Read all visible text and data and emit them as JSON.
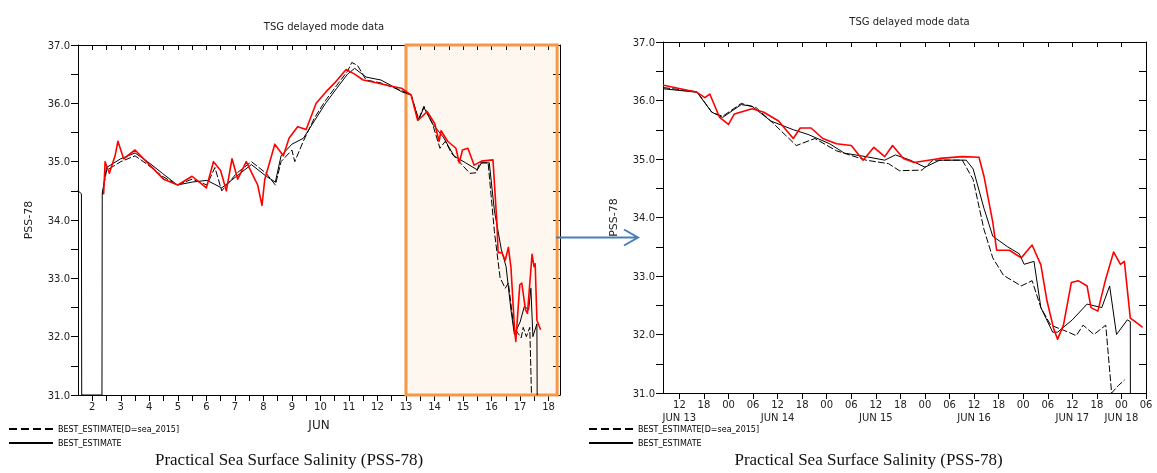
{
  "chart_data": [
    {
      "type": "line",
      "title": "TSG delayed mode data",
      "subtitle": "Practical Sea Surface Salinity (PSS-78)",
      "xlabel": "JUN",
      "ylabel": "PSS-78",
      "xlim": [
        "--06-02T00:00",
        "--06-18T21:36"
      ],
      "xticks": [
        {
          "value": "--06-02T12:00",
          "label": "2"
        },
        {
          "value": "--06-03T12:00",
          "label": "3"
        },
        {
          "value": "--06-04T12:00",
          "label": "4"
        },
        {
          "value": "--06-05T12:00",
          "label": "5"
        },
        {
          "value": "--06-06T12:00",
          "label": "6"
        },
        {
          "value": "--06-07T12:00",
          "label": "7"
        },
        {
          "value": "--06-08T12:00",
          "label": "8"
        },
        {
          "value": "--06-09T12:00",
          "label": "9"
        },
        {
          "value": "--06-10T12:00",
          "label": "10"
        },
        {
          "value": "--06-11T12:00",
          "label": "11"
        },
        {
          "value": "--06-12T12:00",
          "label": "12"
        },
        {
          "value": "--06-13T12:00",
          "label": "13"
        },
        {
          "value": "--06-14T12:00",
          "label": "14"
        },
        {
          "value": "--06-15T12:00",
          "label": "15"
        },
        {
          "value": "--06-16T12:00",
          "label": "16"
        },
        {
          "value": "--06-17T12:00",
          "label": "17"
        },
        {
          "value": "--06-18T12:00",
          "label": "18"
        },
        {
          "value": "--06-03T00:00",
          "label": null
        },
        {
          "value": "--06-04T00:00",
          "label": null
        },
        {
          "value": "--06-05T00:00",
          "label": null
        },
        {
          "value": "--06-06T00:00",
          "label": null
        },
        {
          "value": "--06-07T00:00",
          "label": null
        },
        {
          "value": "--06-08T00:00",
          "label": null
        },
        {
          "value": "--06-09T00:00",
          "label": null
        },
        {
          "value": "--06-10T00:00",
          "label": null
        },
        {
          "value": "--06-11T00:00",
          "label": null
        },
        {
          "value": "--06-12T00:00",
          "label": null
        },
        {
          "value": "--06-13T00:00",
          "label": null
        },
        {
          "value": "--06-14T00:00",
          "label": null
        },
        {
          "value": "--06-15T00:00",
          "label": null
        },
        {
          "value": "--06-16T00:00",
          "label": null
        },
        {
          "value": "--06-17T00:00",
          "label": null
        },
        {
          "value": "--06-18T00:00",
          "label": null
        }
      ],
      "ylim": [
        31,
        37
      ],
      "yticks": [
        {
          "value": 31,
          "label": "31.0"
        },
        {
          "value": 32,
          "label": "32.0"
        },
        {
          "value": 33,
          "label": "33.0"
        },
        {
          "value": 34,
          "label": "34.0"
        },
        {
          "value": 35,
          "label": "35.0"
        },
        {
          "value": 36,
          "label": "36.0"
        },
        {
          "value": 37,
          "label": "37.0"
        },
        {
          "value": 31.5,
          "label": null
        },
        {
          "value": 32.5,
          "label": null
        },
        {
          "value": 33.5,
          "label": null
        },
        {
          "value": 34.5,
          "label": null
        },
        {
          "value": 35.5,
          "label": null
        },
        {
          "value": 36.5,
          "label": null
        }
      ],
      "grid": false,
      "legend": "bottom left",
      "marker": "none",
      "bands": [
        {
          "axis": "x",
          "from": "--06-13T12:00",
          "to": "--06-18T19:12",
          "color": "#f79646"
        }
      ],
      "series": [
        {
          "name": "BEST_ESTIMATE[D=sea_2015]",
          "color": "#000000",
          "line_style": "dashed",
          "x": [
            "--06-02T20:38",
            "--06-03T00:00",
            "--06-03T12:00",
            "--06-04T00:00",
            "--06-04T10:34",
            "--06-04T23:02",
            "--06-05T11:31",
            "--06-06T00:00",
            "--06-06T12:29",
            "--06-06T19:12",
            "--06-07T00:58",
            "--06-07T13:26",
            "--06-08T01:55",
            "--06-08T14:24",
            "--06-08T22:05",
            "--06-09T02:53",
            "--06-09T12:00",
            "--06-09T14:24",
            "--06-09T21:36",
            "--06-10T06:58",
            "--06-10T16:19",
            "--06-11T01:26",
            "--06-11T10:48",
            "--06-11T14:24",
            "--06-11T19:12",
            "--06-12T02:24",
            "--06-12T14:53",
            "--06-13T00:00",
            "--06-13T08:10",
            "--06-13T16:19",
            "--06-13T22:34",
            "--06-14T03:07",
            "--06-14T10:19",
            "--06-14T16:34",
            "--06-14T21:07",
            "--06-15T02:24",
            "--06-15T09:36",
            "--06-15T17:46",
            "--06-15T23:17",
            "--06-16T01:55",
            "--06-16T09:07",
            "--06-16T14:24",
            "--06-16T19:12",
            "--06-16T23:31",
            "--06-17T02:10",
            "--06-17T06:43",
            "--06-17T12:58",
            "--06-17T14:38",
            "--06-17T17:17",
            "--06-17T20:10",
            "--06-17T21:36"
          ],
          "values": [
            34.45,
            34.85,
            35.0,
            35.1,
            34.95,
            34.75,
            34.6,
            34.7,
            34.6,
            34.9,
            34.5,
            34.8,
            35.0,
            34.8,
            34.6,
            35.0,
            35.2,
            35.0,
            35.35,
            35.75,
            36.05,
            36.3,
            36.55,
            36.7,
            36.65,
            36.4,
            36.35,
            36.28,
            36.22,
            36.15,
            35.73,
            35.95,
            35.65,
            35.23,
            35.35,
            35.14,
            34.98,
            34.8,
            34.81,
            34.98,
            34.98,
            33.8,
            33.01,
            32.83,
            32.92,
            32.16,
            31.98,
            32.16,
            32.0,
            32.16,
            31.0
          ]
        },
        {
          "name": "BEST_ESTIMATE",
          "color": "#000000",
          "line_style": "solid",
          "x": [
            "--06-02T00:00",
            "--06-02T02:53",
            "--06-02T03:07",
            "--06-02T20:10",
            "--06-02T20:24",
            "--06-03T00:00",
            "--06-03T12:00",
            "--06-04T00:00",
            "--06-04T10:34",
            "--06-04T23:02",
            "--06-05T11:31",
            "--06-06T00:00",
            "--06-06T12:29",
            "--06-07T00:58",
            "--06-07T13:26",
            "--06-08T01:55",
            "--06-08T14:24",
            "--06-08T22:05",
            "--06-09T02:53",
            "--06-09T12:00",
            "--06-09T21:36",
            "--06-10T06:58",
            "--06-10T16:19",
            "--06-11T01:26",
            "--06-11T10:48",
            "--06-11T16:48",
            "--06-12T02:24",
            "--06-12T14:53",
            "--06-13T00:00",
            "--06-13T08:10",
            "--06-13T16:19",
            "--06-13T22:34",
            "--06-14T03:07",
            "--06-14T10:19",
            "--06-14T19:26",
            "--06-15T04:19",
            "--06-15T14:10",
            "--06-16T00:00",
            "--06-16T03:36",
            "--06-16T10:05",
            "--06-16T14:24",
            "--06-16T20:10",
            "--06-17T00:14",
            "--06-17T04:19",
            "--06-17T07:12",
            "--06-17T12:00",
            "--06-17T15:36",
            "--06-17T19:12",
            "--06-17T21:07",
            "--06-17T22:48",
            "--06-18T02:10",
            "--06-18T02:24"
          ],
          "values": [
            34.5,
            34.45,
            31.0,
            31.0,
            34.45,
            34.9,
            35.05,
            35.15,
            35.0,
            34.8,
            34.6,
            34.65,
            34.68,
            34.55,
            34.75,
            34.95,
            34.75,
            34.65,
            35.1,
            35.3,
            35.4,
            35.7,
            36.0,
            36.25,
            36.5,
            36.6,
            36.45,
            36.4,
            36.3,
            36.2,
            36.14,
            35.71,
            35.93,
            35.65,
            35.42,
            35.1,
            34.98,
            34.86,
            34.98,
            34.98,
            34.16,
            33.5,
            33.2,
            32.46,
            32.04,
            32.25,
            32.52,
            32.46,
            32.83,
            32.0,
            32.22,
            31.0
          ]
        },
        {
          "color": "#ff0000",
          "line_style": "solid",
          "x": [
            "--06-02T21:36",
            "--06-02T22:48",
            "--06-03T02:24",
            "--06-03T07:12",
            "--06-03T09:36",
            "--06-03T14:24",
            "--06-04T00:00",
            "--06-04T12:00",
            "--06-05T00:00",
            "--06-05T12:00",
            "--06-06T00:00",
            "--06-06T12:00",
            "--06-06T18:00",
            "--06-07T00:00",
            "--06-07T04:48",
            "--06-07T09:36",
            "--06-07T14:24",
            "--06-07T21:36",
            "--06-08T07:12",
            "--06-08T10:48",
            "--06-08T13:12",
            "--06-08T21:36",
            "--06-09T04:48",
            "--06-09T09:36",
            "--06-09T16:48",
            "--06-10T00:00",
            "--06-10T08:24",
            "--06-10T16:48",
            "--06-11T00:00",
            "--06-11T09:36",
            "--06-11T16:48",
            "--06-12T00:00",
            "--06-12T12:00",
            "--06-12T21:36",
            "--06-13T08:10",
            "--06-13T16:19",
            "--06-13T21:50",
            "--06-14T01:26",
            "--06-14T05:46",
            "--06-14T12:14",
            "--06-14T15:50",
            "--06-14T17:31",
            "--06-14T23:02",
            "--06-15T06:00",
            "--06-15T08:53",
            "--06-15T11:31",
            "--06-15T16:05",
            "--06-15T21:22",
            "--06-16T03:36",
            "--06-16T13:12",
            "--06-16T16:34",
            "--06-16T17:31",
            "--06-16T20:38",
            "--06-16T23:31",
            "--06-17T02:10",
            "--06-17T04:19",
            "--06-17T07:26",
            "--06-17T08:24",
            "--06-17T11:46",
            "--06-17T13:26",
            "--06-17T16:34",
            "--06-17T18:14",
            "--06-17T22:05",
            "--06-17T23:46",
            "--06-18T00:43",
            "--06-18T02:10",
            "--06-18T05:02"
          ],
          "values": [
            34.45,
            35.0,
            34.8,
            35.1,
            35.35,
            35.05,
            35.2,
            34.95,
            34.7,
            34.6,
            34.75,
            34.55,
            35.0,
            34.85,
            34.5,
            35.05,
            34.7,
            35.0,
            34.6,
            34.25,
            34.7,
            35.3,
            35.1,
            35.4,
            35.6,
            35.55,
            36.0,
            36.2,
            36.35,
            36.58,
            36.5,
            36.4,
            36.35,
            36.3,
            36.26,
            36.14,
            35.71,
            35.77,
            35.86,
            35.65,
            35.35,
            35.53,
            35.35,
            35.23,
            34.98,
            35.2,
            35.23,
            34.94,
            35.01,
            35.03,
            33.92,
            33.44,
            33.44,
            33.31,
            33.53,
            33.19,
            32.1,
            31.92,
            32.89,
            32.92,
            32.46,
            32.4,
            33.41,
            33.2,
            33.25,
            32.28,
            32.13
          ]
        }
      ]
    },
    {
      "type": "line",
      "title": "TSG delayed mode data",
      "subtitle": "Practical Sea Surface Salinity (PSS-78)",
      "ylabel": "PSS-78",
      "xlim": [
        "--06-13T08:00",
        "--06-18T06:00"
      ],
      "xticks": [
        {
          "value": "--06-13T12:00",
          "label": "12\nJUN 13"
        },
        {
          "value": "--06-13T18:00",
          "label": "18"
        },
        {
          "value": "--06-14T00:00",
          "label": "00"
        },
        {
          "value": "--06-14T06:00",
          "label": "06"
        },
        {
          "value": "--06-14T12:00",
          "label": "12\nJUN 14"
        },
        {
          "value": "--06-14T18:00",
          "label": "18"
        },
        {
          "value": "--06-15T00:00",
          "label": "00"
        },
        {
          "value": "--06-15T06:00",
          "label": "06"
        },
        {
          "value": "--06-15T12:00",
          "label": "12\nJUN 15"
        },
        {
          "value": "--06-15T18:00",
          "label": "18"
        },
        {
          "value": "--06-16T00:00",
          "label": "00"
        },
        {
          "value": "--06-16T06:00",
          "label": "06"
        },
        {
          "value": "--06-16T12:00",
          "label": "12\nJUN 16"
        },
        {
          "value": "--06-16T18:00",
          "label": "18"
        },
        {
          "value": "--06-17T00:00",
          "label": "00"
        },
        {
          "value": "--06-17T06:00",
          "label": "06"
        },
        {
          "value": "--06-17T12:00",
          "label": "12\nJUN 17"
        },
        {
          "value": "--06-17T18:00",
          "label": "18"
        },
        {
          "value": "--06-18T00:00",
          "label": "00\nJUN 18"
        },
        {
          "value": "--06-18T06:00",
          "label": "06"
        }
      ],
      "ylim": [
        31,
        37
      ],
      "yticks": [
        {
          "value": 31,
          "label": "31.0"
        },
        {
          "value": 32,
          "label": "32.0"
        },
        {
          "value": 33,
          "label": "33.0"
        },
        {
          "value": 34,
          "label": "34.0"
        },
        {
          "value": 35,
          "label": "35.0"
        },
        {
          "value": 36,
          "label": "36.0"
        },
        {
          "value": 37,
          "label": "37.0"
        },
        {
          "value": 31.5,
          "label": null
        },
        {
          "value": 32.5,
          "label": null
        },
        {
          "value": 33.5,
          "label": null
        },
        {
          "value": 34.5,
          "label": null
        },
        {
          "value": 35.5,
          "label": null
        },
        {
          "value": 36.5,
          "label": null
        }
      ],
      "grid": false,
      "legend": "bottom left",
      "marker": "none",
      "series": [
        {
          "name": "BEST_ESTIMATE[D=sea_2015]",
          "color": "#000000",
          "line_style": "dashed",
          "x": [
            "--06-13T08:10",
            "--06-13T16:19",
            "--06-13T19:55",
            "--06-13T22:34",
            "--06-14T03:07",
            "--06-14T06:43",
            "--06-14T10:19",
            "--06-14T16:34",
            "--06-14T21:07",
            "--06-15T02:24",
            "--06-15T09:36",
            "--06-15T15:07",
            "--06-15T17:46",
            "--06-15T23:17",
            "--06-16T01:55",
            "--06-16T09:07",
            "--06-16T11:46",
            "--06-16T14:24",
            "--06-16T16:34",
            "--06-16T19:12",
            "--06-16T23:31",
            "--06-17T02:10",
            "--06-17T04:19",
            "--06-17T06:43",
            "--06-17T11:02",
            "--06-17T12:58",
            "--06-17T14:38",
            "--06-17T17:17",
            "--06-17T20:10",
            "--06-17T21:36",
            "--06-17T23:17",
            "--06-18T00:43"
          ],
          "values": [
            36.22,
            36.15,
            35.8,
            35.73,
            35.95,
            35.88,
            35.65,
            35.23,
            35.35,
            35.14,
            34.98,
            34.92,
            34.8,
            34.81,
            34.98,
            34.98,
            34.65,
            33.8,
            33.31,
            33.01,
            32.83,
            32.92,
            32.46,
            32.16,
            32.04,
            31.98,
            32.16,
            32.0,
            32.16,
            31.0,
            31.13,
            31.22
          ]
        },
        {
          "name": "BEST_ESTIMATE",
          "color": "#000000",
          "line_style": "solid",
          "x": [
            "--06-13T08:10",
            "--06-13T16:19",
            "--06-13T19:55",
            "--06-13T22:34",
            "--06-14T03:07",
            "--06-14T05:46",
            "--06-14T10:19",
            "--06-14T15:50",
            "--06-14T19:26",
            "--06-15T00:43",
            "--06-15T04:19",
            "--06-15T09:36",
            "--06-15T14:10",
            "--06-15T16:48",
            "--06-15T20:24",
            "--06-16T00:00",
            "--06-16T03:36",
            "--06-16T10:05",
            "--06-16T11:46",
            "--06-16T14:24",
            "--06-16T16:34",
            "--06-16T20:10",
            "--06-16T23:02",
            "--06-17T00:14",
            "--06-17T02:38",
            "--06-17T04:19",
            "--06-17T07:12",
            "--06-17T08:24",
            "--06-17T12:00",
            "--06-17T15:36",
            "--06-17T19:12",
            "--06-17T21:07",
            "--06-17T22:48",
            "--06-18T01:26",
            "--06-18T02:10",
            "--06-18T02:11"
          ],
          "values": [
            36.2,
            36.14,
            35.8,
            35.71,
            35.93,
            35.9,
            35.65,
            35.5,
            35.42,
            35.26,
            35.1,
            35.04,
            34.98,
            35.07,
            34.98,
            34.86,
            34.98,
            34.98,
            34.83,
            34.16,
            33.68,
            33.5,
            33.38,
            33.2,
            33.25,
            32.46,
            32.04,
            32.04,
            32.25,
            32.52,
            32.46,
            32.83,
            32.0,
            32.25,
            32.22,
            31.0
          ]
        },
        {
          "color": "#ff0000",
          "line_style": "solid",
          "x": [
            "--06-13T08:10",
            "--06-13T16:19",
            "--06-13T18:14",
            "--06-13T19:26",
            "--06-13T21:50",
            "--06-14T00:00",
            "--06-14T01:26",
            "--06-14T05:46",
            "--06-14T08:38",
            "--06-14T12:14",
            "--06-14T15:50",
            "--06-14T17:31",
            "--06-14T20:10",
            "--06-14T23:02",
            "--06-15T02:24",
            "--06-15T06:00",
            "--06-15T08:53",
            "--06-15T11:31",
            "--06-15T14:10",
            "--06-15T16:05",
            "--06-15T18:43",
            "--06-15T21:22",
            "--06-16T03:36",
            "--06-16T09:07",
            "--06-16T13:12",
            "--06-16T14:24",
            "--06-16T16:34",
            "--06-16T17:31",
            "--06-16T20:38",
            "--06-16T23:31",
            "--06-17T02:10",
            "--06-17T04:19",
            "--06-17T05:46",
            "--06-17T07:26",
            "--06-17T08:24",
            "--06-17T09:50",
            "--06-17T11:46",
            "--06-17T13:26",
            "--06-17T15:36",
            "--06-17T16:34",
            "--06-17T18:14",
            "--06-17T20:10",
            "--06-17T22:05",
            "--06-17T23:46",
            "--06-18T00:43",
            "--06-18T02:10",
            "--06-18T03:22",
            "--06-18T05:02"
          ],
          "values": [
            36.26,
            36.14,
            36.05,
            36.11,
            35.71,
            35.59,
            35.77,
            35.86,
            35.8,
            35.65,
            35.35,
            35.53,
            35.53,
            35.35,
            35.26,
            35.23,
            34.98,
            35.2,
            35.04,
            35.23,
            35.01,
            34.94,
            35.01,
            35.04,
            35.03,
            34.71,
            33.92,
            33.44,
            33.44,
            33.31,
            33.53,
            33.19,
            32.59,
            32.1,
            31.92,
            32.16,
            32.89,
            32.92,
            32.83,
            32.46,
            32.4,
            32.95,
            33.41,
            33.2,
            33.25,
            32.28,
            32.22,
            32.13
          ]
        }
      ]
    }
  ]
}
